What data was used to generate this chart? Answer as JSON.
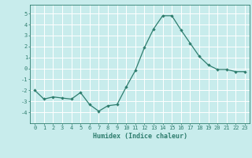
{
  "x": [
    0,
    1,
    2,
    3,
    4,
    5,
    6,
    7,
    8,
    9,
    10,
    11,
    12,
    13,
    14,
    15,
    16,
    17,
    18,
    19,
    20,
    21,
    22,
    23
  ],
  "y": [
    -2.0,
    -2.8,
    -2.6,
    -2.7,
    -2.8,
    -2.2,
    -3.3,
    -3.9,
    -3.4,
    -3.3,
    -1.7,
    -0.2,
    1.9,
    3.6,
    4.8,
    4.8,
    3.5,
    2.3,
    1.1,
    0.3,
    -0.1,
    -0.1,
    -0.3,
    -0.3
  ],
  "xlabel": "Humidex (Indice chaleur)",
  "ylim": [
    -5,
    5.8
  ],
  "xlim": [
    -0.5,
    23.5
  ],
  "yticks": [
    -4,
    -3,
    -2,
    -1,
    0,
    1,
    2,
    3,
    4,
    5
  ],
  "xticks": [
    0,
    1,
    2,
    3,
    4,
    5,
    6,
    7,
    8,
    9,
    10,
    11,
    12,
    13,
    14,
    15,
    16,
    17,
    18,
    19,
    20,
    21,
    22,
    23
  ],
  "line_color": "#2e7d6e",
  "marker": "D",
  "marker_size": 2.2,
  "bg_color": "#c8ecec",
  "grid_color": "#ffffff",
  "tick_color": "#2e7d6e",
  "label_color": "#2e7d6e",
  "tick_fontsize": 5.0,
  "xlabel_fontsize": 6.0
}
